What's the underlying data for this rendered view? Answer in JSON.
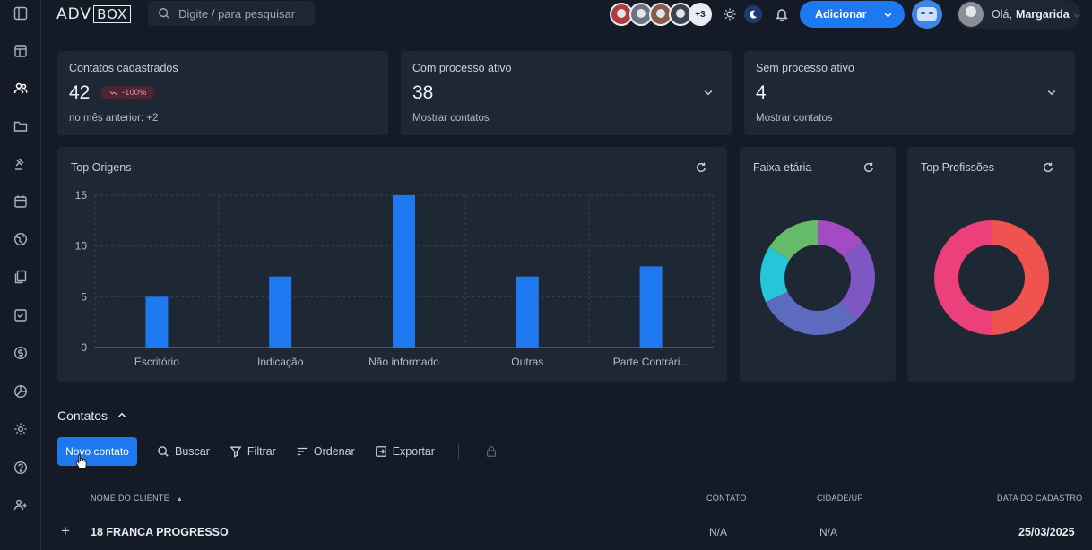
{
  "header": {
    "logo_left": "ADV",
    "logo_right": "BOX",
    "search_placeholder": "Digite / para pesquisar",
    "team_more": "+3",
    "add_button": "Adicionar",
    "greeting": "Olá,",
    "user_name": "Margarida"
  },
  "stats": {
    "registered": {
      "title": "Contatos cadastrados",
      "value": "42",
      "badge": "-100%",
      "sub": "no mês anterior: +2"
    },
    "active": {
      "title": "Com processo ativo",
      "value": "38",
      "sub": "Mostrar contatos"
    },
    "inactive": {
      "title": "Sem processo ativo",
      "value": "4",
      "sub": "Mostrar contatos"
    }
  },
  "panels": {
    "origins": "Top Origens",
    "age": "Faixa etária",
    "professions": "Top Profissões"
  },
  "chart_data": [
    {
      "type": "bar",
      "categories": [
        "Escritório",
        "Indicação",
        "Não informado",
        "Outras",
        "Parte Contrári..."
      ],
      "values": [
        5,
        7,
        15,
        7,
        8
      ],
      "ylim": [
        0,
        15
      ],
      "yticks": [
        0,
        5,
        10,
        15
      ],
      "grid": true,
      "color": "#1e78f0"
    },
    {
      "type": "pie",
      "slices": [
        {
          "value": 14,
          "color": "#a44bc3"
        },
        {
          "value": 24,
          "color": "#7e57c2"
        },
        {
          "value": 30,
          "color": "#5c6bc0"
        },
        {
          "value": 16,
          "color": "#26c6da"
        },
        {
          "value": 16,
          "color": "#66bb6a"
        }
      ]
    },
    {
      "type": "pie",
      "slices": [
        {
          "value": 50,
          "color": "#ef5350"
        },
        {
          "value": 50,
          "color": "#ec407a"
        }
      ]
    }
  ],
  "contacts": {
    "section_title": "Contatos",
    "new_contact": "Novo contato",
    "search": "Buscar",
    "filter": "Filtrar",
    "sort": "Ordenar",
    "export": "Exportar",
    "columns": {
      "name": "NOME DO CLIENTE",
      "contact": "CONTATO",
      "city": "CIDADE/UF",
      "date": "DATA DO CADASTRO"
    },
    "rows": [
      {
        "name": "18 FRANCA PROGRESSO",
        "contact": "N/A",
        "city": "N/A",
        "date": "25/03/2025"
      }
    ]
  }
}
